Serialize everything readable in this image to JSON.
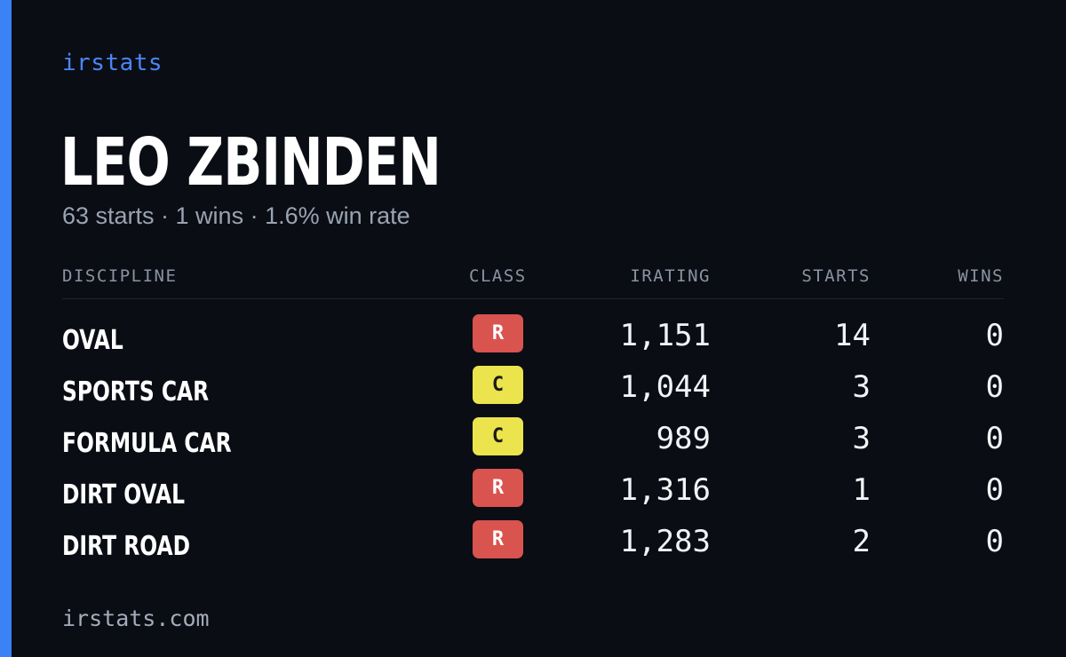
{
  "brand": "irstats",
  "driver": {
    "name": "LEO ZBINDEN",
    "summary": "63 starts · 1 wins · 1.6% win rate"
  },
  "table": {
    "headers": {
      "discipline": "DISCIPLINE",
      "class": "CLASS",
      "irating": "IRATING",
      "starts": "STARTS",
      "wins": "WINS"
    },
    "rows": [
      {
        "discipline": "OVAL",
        "class": "R",
        "irating": "1,151",
        "starts": "14",
        "wins": "0"
      },
      {
        "discipline": "SPORTS CAR",
        "class": "C",
        "irating": "1,044",
        "starts": "3",
        "wins": "0"
      },
      {
        "discipline": "FORMULA CAR",
        "class": "C",
        "irating": "989",
        "starts": "3",
        "wins": "0"
      },
      {
        "discipline": "DIRT OVAL",
        "class": "R",
        "irating": "1,316",
        "starts": "1",
        "wins": "0"
      },
      {
        "discipline": "DIRT ROAD",
        "class": "R",
        "irating": "1,283",
        "starts": "2",
        "wins": "0"
      }
    ]
  },
  "class_colors": {
    "R": {
      "bg": "#d9534f",
      "fg": "#ffffff"
    },
    "C": {
      "bg": "#ece44c",
      "fg": "#1a1a1a"
    }
  },
  "colors": {
    "accent": "#3b82f6",
    "background": "#0a0d14"
  },
  "footer": "irstats.com"
}
